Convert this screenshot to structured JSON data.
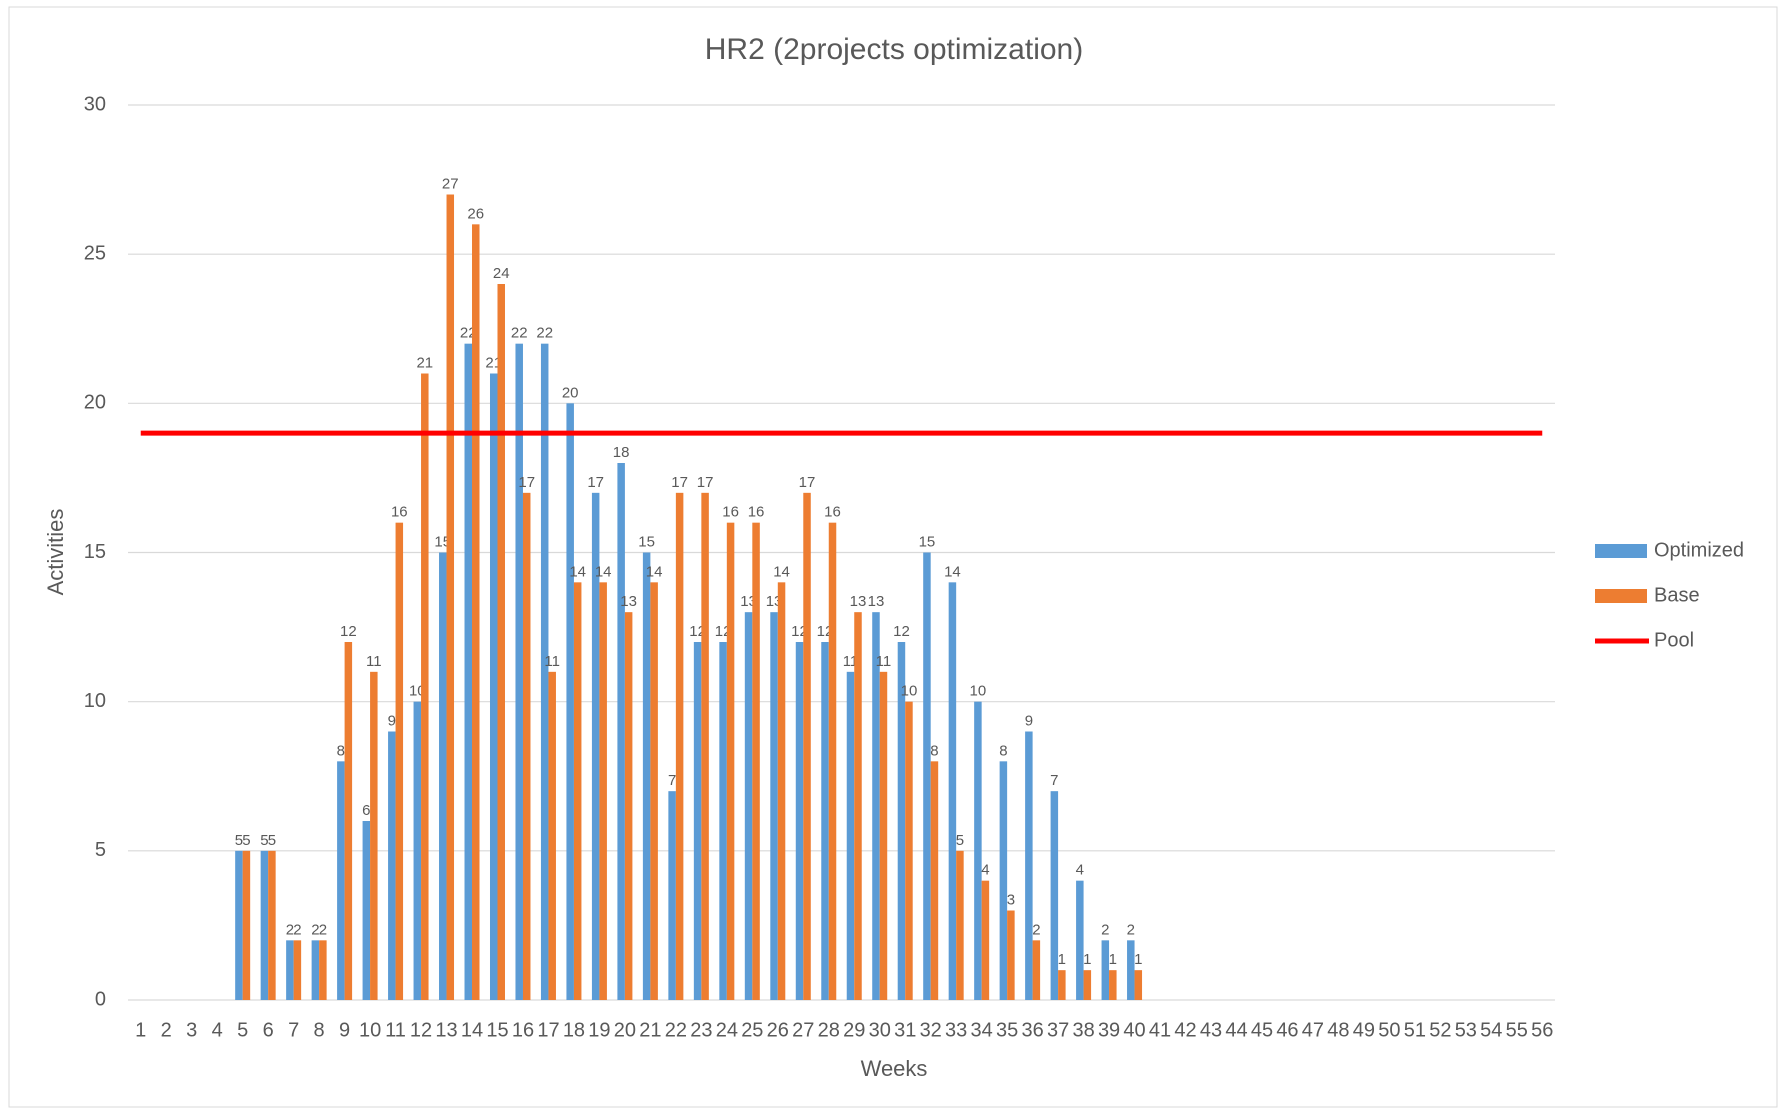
{
  "chart_data": {
    "type": "bar",
    "title": "HR2 (2projects optimization)",
    "x_label": "Weeks",
    "y_label": "Activities",
    "categories": [
      1,
      2,
      3,
      4,
      5,
      6,
      7,
      8,
      9,
      10,
      11,
      12,
      13,
      14,
      15,
      16,
      17,
      18,
      19,
      20,
      21,
      22,
      23,
      24,
      25,
      26,
      27,
      28,
      29,
      30,
      31,
      32,
      33,
      34,
      35,
      36,
      37,
      38,
      39,
      40,
      41,
      42,
      43,
      44,
      45,
      46,
      47,
      48,
      49,
      50,
      51,
      52,
      53,
      54,
      55,
      56
    ],
    "series": [
      {
        "name": "Optimized",
        "color": "#5b9bd5",
        "type": "bar",
        "values": [
          null,
          null,
          null,
          null,
          5,
          5,
          2,
          2,
          8,
          6,
          9,
          10,
          15,
          22,
          21,
          22,
          22,
          20,
          17,
          18,
          15,
          7,
          12,
          12,
          13,
          13,
          12,
          12,
          11,
          13,
          12,
          15,
          14,
          10,
          8,
          9,
          7,
          4,
          2,
          2,
          null,
          null,
          null,
          null,
          null,
          null,
          null,
          null,
          null,
          null,
          null,
          null,
          null,
          null,
          null,
          null
        ]
      },
      {
        "name": "Base",
        "color": "#ed7d31",
        "type": "bar",
        "values": [
          null,
          null,
          null,
          null,
          5,
          5,
          2,
          2,
          12,
          11,
          16,
          21,
          27,
          26,
          24,
          17,
          11,
          14,
          14,
          13,
          14,
          17,
          17,
          16,
          16,
          14,
          17,
          16,
          13,
          11,
          10,
          8,
          5,
          4,
          3,
          2,
          1,
          1,
          1,
          1,
          null,
          null,
          null,
          null,
          null,
          null,
          null,
          null,
          null,
          null,
          null,
          null,
          null,
          null,
          null,
          null
        ]
      },
      {
        "name": "Pool",
        "color": "#ff0000",
        "type": "line",
        "values": [
          19,
          19,
          19,
          19,
          19,
          19,
          19,
          19,
          19,
          19,
          19,
          19,
          19,
          19,
          19,
          19,
          19,
          19,
          19,
          19,
          19,
          19,
          19,
          19,
          19,
          19,
          19,
          19,
          19,
          19,
          19,
          19,
          19,
          19,
          19,
          19,
          19,
          19,
          19,
          19,
          19,
          19,
          19,
          19,
          19,
          19,
          19,
          19,
          19,
          19,
          19,
          19,
          19,
          19,
          19,
          19
        ]
      }
    ],
    "ylim": [
      0,
      30
    ],
    "yticks": [
      0,
      5,
      10,
      15,
      20,
      25,
      30
    ],
    "grid": true,
    "legend": "right"
  }
}
